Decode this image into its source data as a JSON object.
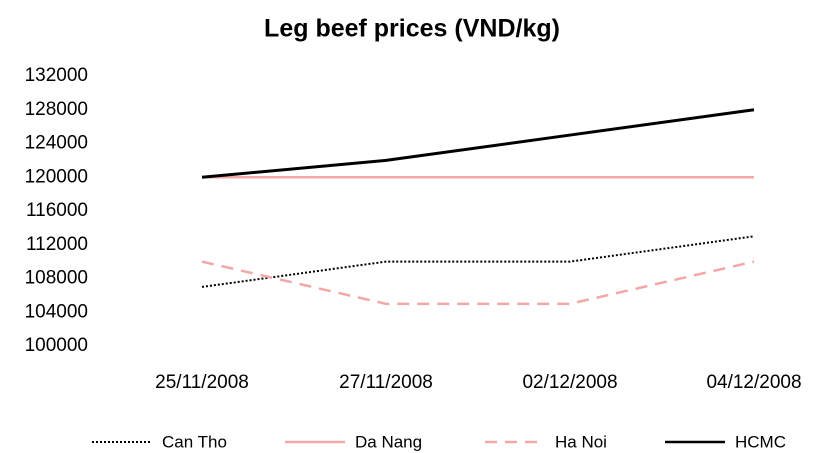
{
  "chart_data": {
    "type": "line",
    "title": "Leg beef prices (VND/kg)",
    "categories": [
      "25/11/2008",
      "27/11/2008",
      "02/12/2008",
      "04/12/2008"
    ],
    "series": [
      {
        "name": "Can Tho",
        "color": "#000000",
        "style": "dotted",
        "values": [
          107000,
          110000,
          110000,
          113000
        ]
      },
      {
        "name": "Da Nang",
        "color": "#f4a7a7",
        "style": "solid",
        "values": [
          120000,
          120000,
          120000,
          120000
        ]
      },
      {
        "name": "Ha Noi",
        "color": "#f4a7a7",
        "style": "dashed",
        "values": [
          110000,
          105000,
          105000,
          110000
        ]
      },
      {
        "name": "HCMC",
        "color": "#000000",
        "style": "solid",
        "values": [
          120000,
          122000,
          125000,
          128000
        ]
      }
    ],
    "ylim": [
      100000,
      132000
    ],
    "yticks": [
      100000,
      104000,
      108000,
      112000,
      116000,
      120000,
      124000,
      128000,
      132000
    ],
    "grid": false,
    "legend": "bottom"
  }
}
